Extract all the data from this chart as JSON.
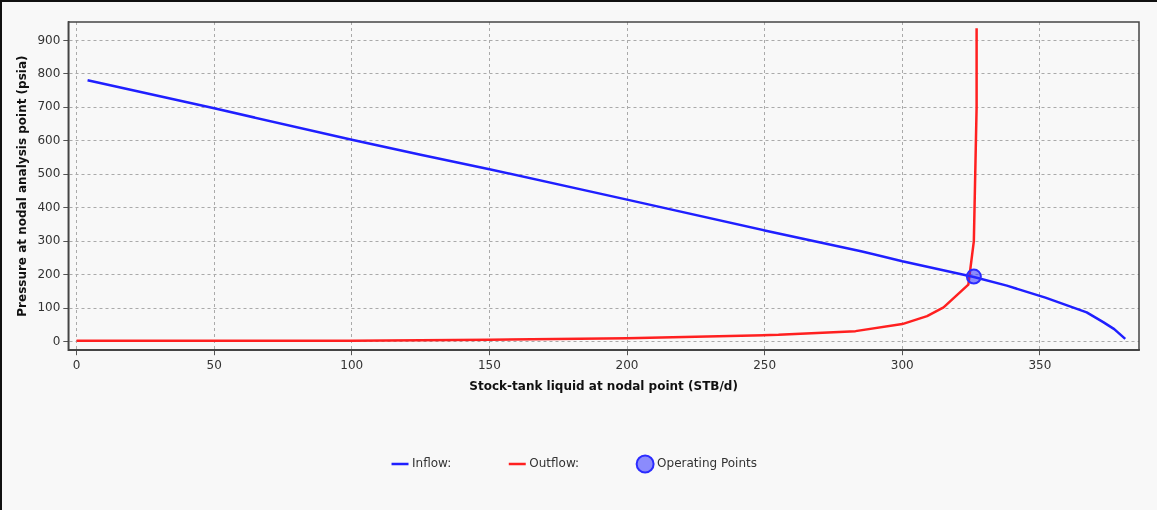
{
  "chart_data": {
    "type": "line",
    "xlabel": "Stock-tank liquid at nodal point (STB/d)",
    "ylabel": "Pressure at nodal analysis point (psia)",
    "xlim": [
      -3,
      386
    ],
    "xticks": [
      0,
      50,
      100,
      150,
      200,
      250,
      300,
      350
    ],
    "ylim": [
      -26,
      955
    ],
    "yticks": [
      0,
      100,
      200,
      300,
      400,
      500,
      600,
      700,
      800,
      900
    ],
    "grid": true,
    "legend": "bottom",
    "line_style": "solid",
    "series": [
      {
        "name": "Inflow:",
        "type": "line",
        "marker": "none",
        "color": "#1f1fff",
        "x": [
          4,
          50,
          100,
          125,
          150,
          200,
          250,
          285,
          300,
          326,
          338,
          352,
          367,
          373,
          377,
          381
        ],
        "values": [
          781,
          697,
          603,
          558,
          515,
          424,
          332,
          270,
          240,
          193,
          167,
          131,
          87,
          58,
          37,
          8
        ]
      },
      {
        "name": "Outflow:",
        "type": "line",
        "marker": "none",
        "color": "#ff2020",
        "x": [
          0,
          100,
          150,
          200,
          255,
          283,
          300,
          309,
          315,
          324,
          326,
          327,
          327
        ],
        "values": [
          2,
          2,
          5,
          10,
          20,
          31,
          52,
          76,
          102,
          170,
          300,
          700,
          936
        ]
      },
      {
        "name": "Operating Points",
        "type": "scatter",
        "marker": "circle",
        "color": "#2b2bff",
        "x": [
          326
        ],
        "values": [
          194
        ]
      }
    ]
  }
}
